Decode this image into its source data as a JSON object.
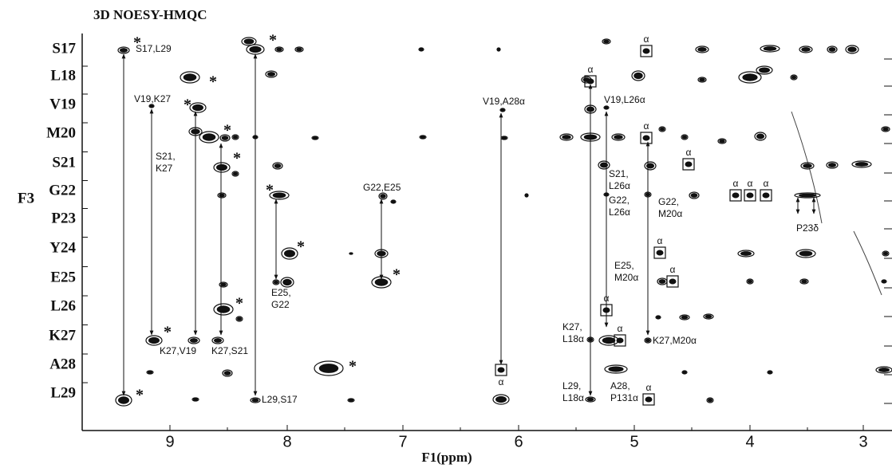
{
  "title": "3D NOESY-HMQC",
  "y_axis": {
    "label": "F3",
    "rows": [
      "S17",
      "L18",
      "V19",
      "M20",
      "S21",
      "G22",
      "P23",
      "Y24",
      "E25",
      "L26",
      "K27",
      "A28",
      "L29"
    ]
  },
  "x_axis": {
    "label": "F1(ppm)",
    "ticks": [
      "9",
      "8",
      "7",
      "6",
      "5",
      "4",
      "3"
    ]
  },
  "annotations": [
    [
      "S17,L29"
    ],
    [
      "V19,K27"
    ],
    [
      "S21,",
      "K27"
    ],
    [
      "K27,V19"
    ],
    [
      "K27,S21"
    ],
    [
      "L29,S17"
    ],
    [
      "E25,",
      "G22"
    ],
    [
      "G22,E25"
    ],
    [
      "V19,A28α"
    ],
    [
      "V19,L26α"
    ],
    [
      "S21,",
      "L26α"
    ],
    [
      "G22,",
      "L26α"
    ],
    [
      "G22,",
      "M20α"
    ],
    [
      "E25,",
      "M20α"
    ],
    [
      "K27,",
      "L18α"
    ],
    [
      "K27,M20α"
    ],
    [
      "L29,",
      "L18α"
    ],
    [
      "A28,",
      "P131α"
    ],
    [
      "P23δ"
    ]
  ],
  "alpha_marker": "α",
  "asterisk": "*"
}
